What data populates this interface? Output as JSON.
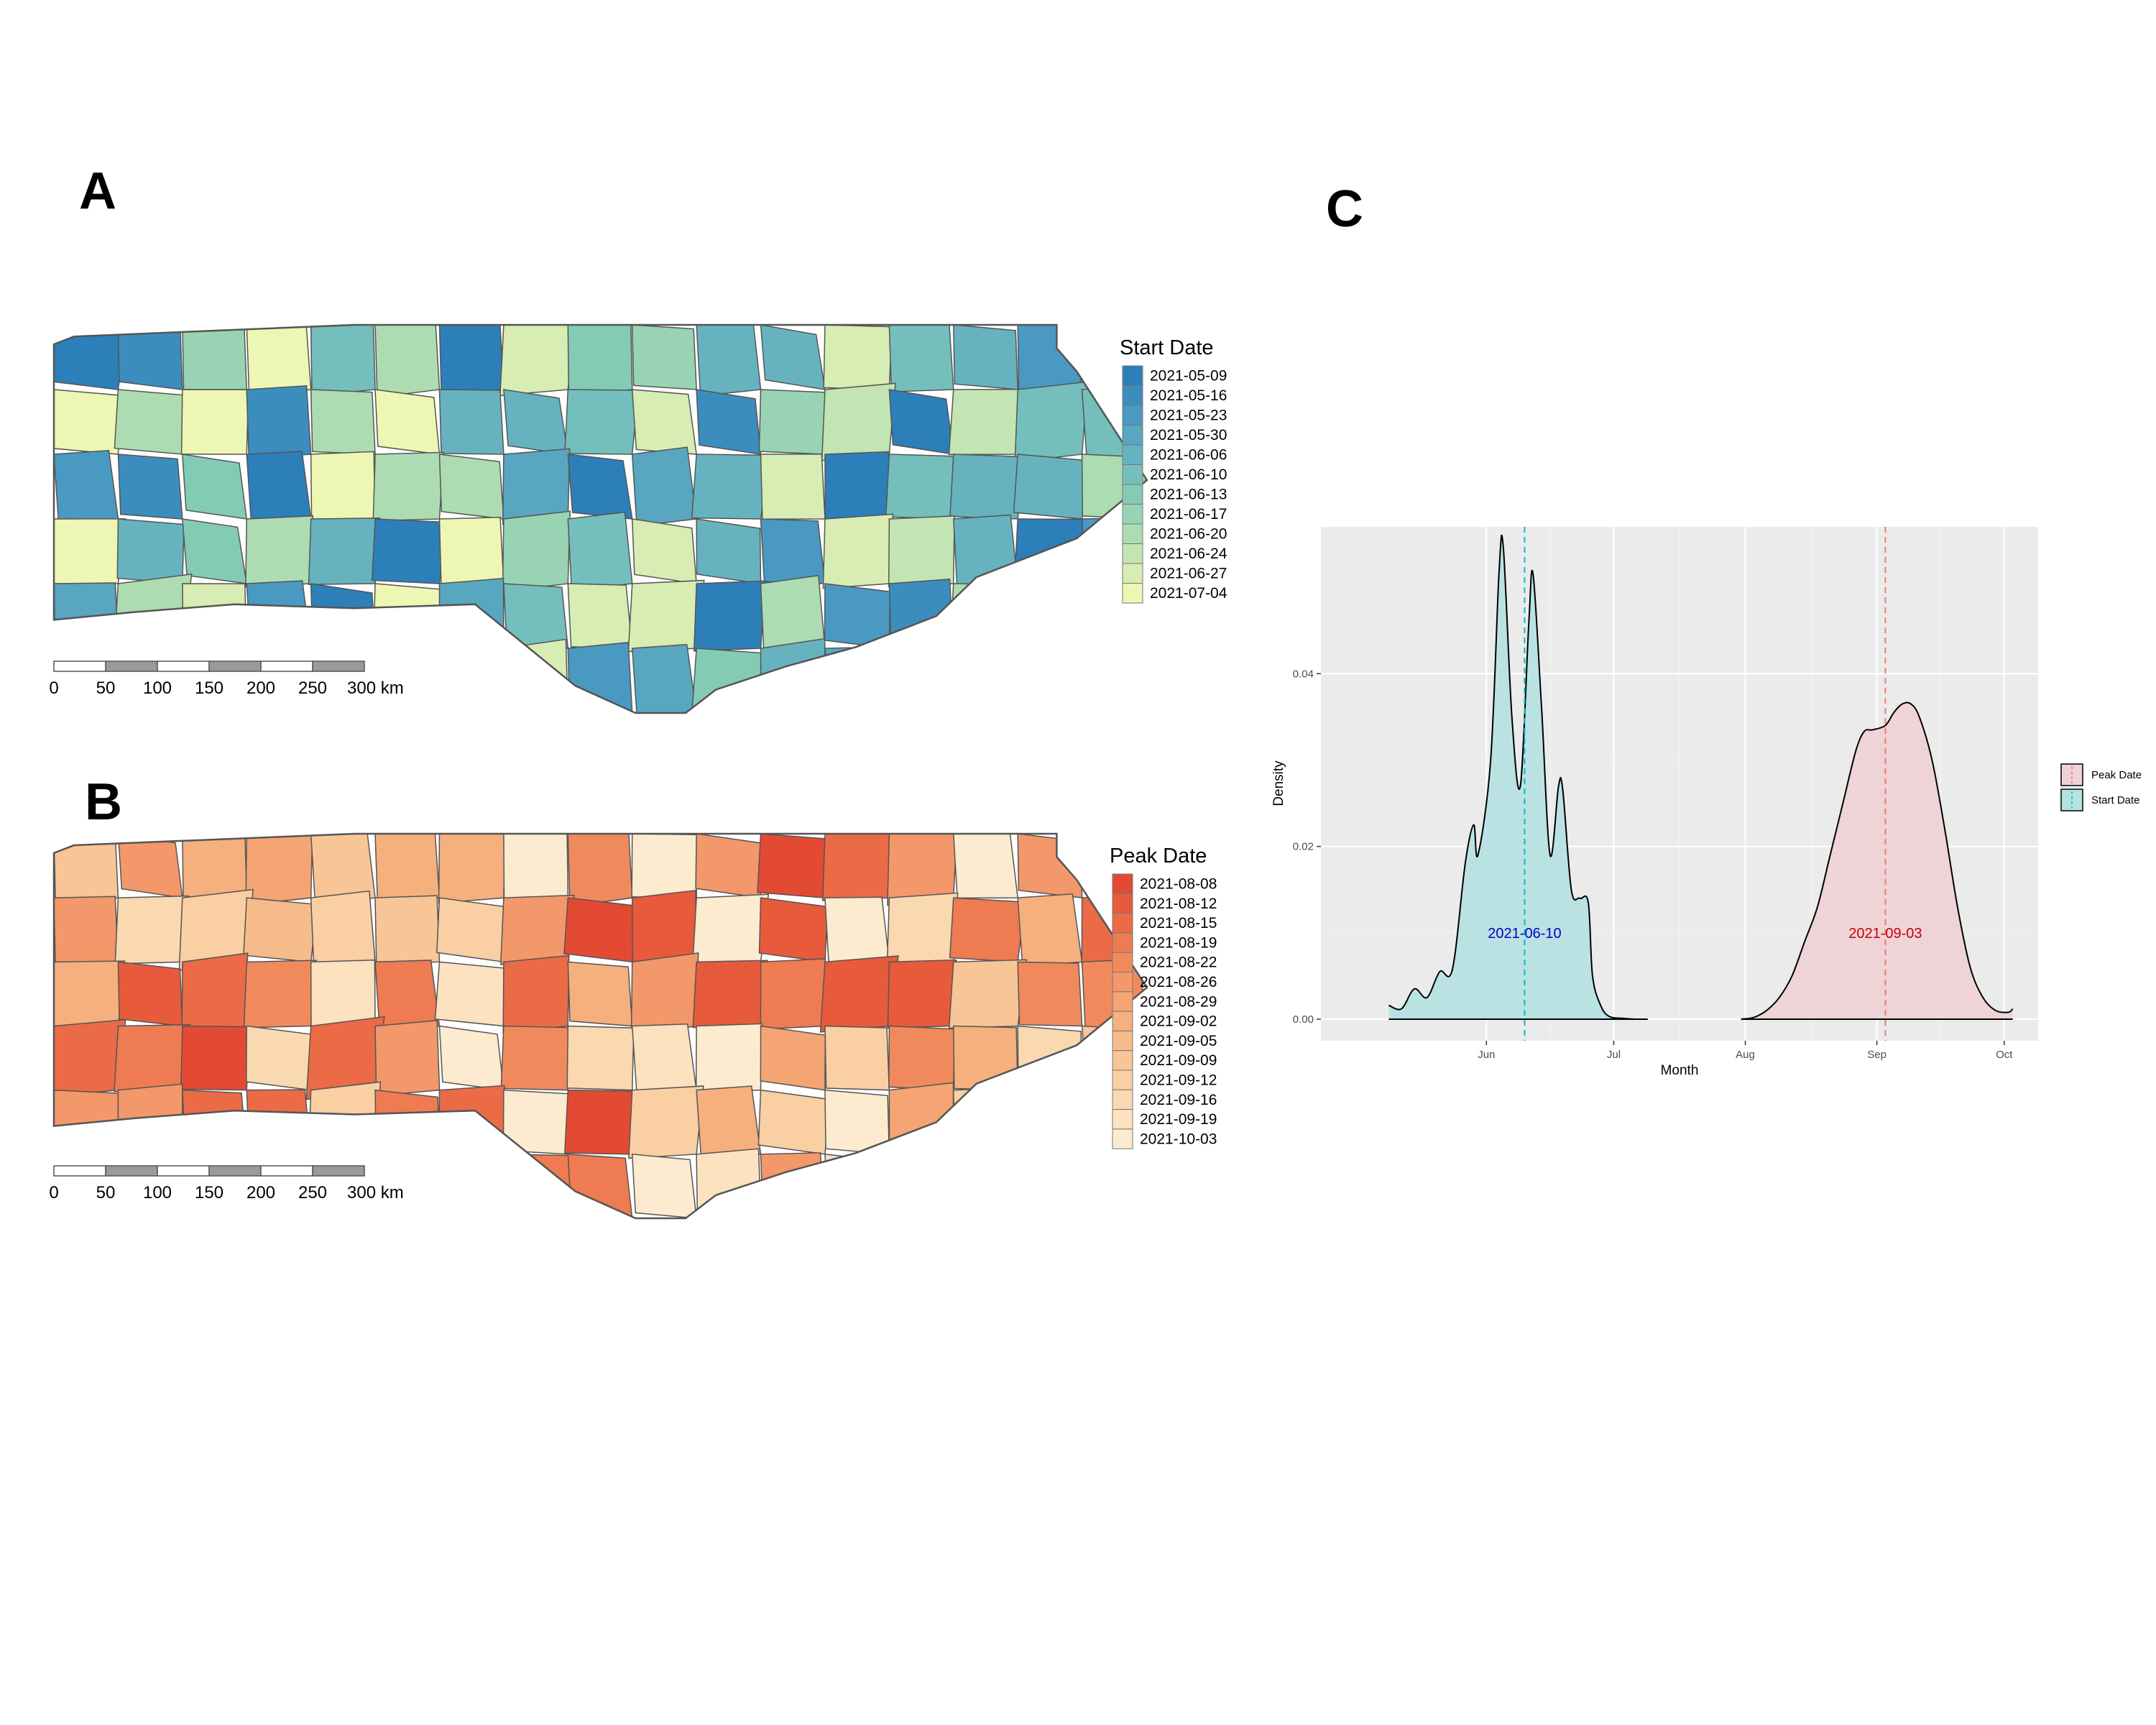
{
  "panels": {
    "a": "A",
    "b": "B",
    "c": "C"
  },
  "map_a": {
    "legend_title": "Start Date",
    "items": [
      {
        "label": "2021-05-09",
        "color": "#2c7fb8"
      },
      {
        "label": "2021-05-16",
        "color": "#3b8dbe"
      },
      {
        "label": "2021-05-23",
        "color": "#4a99c2"
      },
      {
        "label": "2021-05-30",
        "color": "#58a6c0"
      },
      {
        "label": "2021-06-06",
        "color": "#66b3bf"
      },
      {
        "label": "2021-06-10",
        "color": "#74bfbb"
      },
      {
        "label": "2021-06-13",
        "color": "#84cbb6"
      },
      {
        "label": "2021-06-17",
        "color": "#98d4b3"
      },
      {
        "label": "2021-06-20",
        "color": "#addcb2"
      },
      {
        "label": "2021-06-24",
        "color": "#c2e5b3"
      },
      {
        "label": "2021-06-27",
        "color": "#d7edb3"
      },
      {
        "label": "2021-07-04",
        "color": "#edf7b3"
      }
    ]
  },
  "map_b": {
    "legend_title": "Peak Date",
    "items": [
      {
        "label": "2021-08-08",
        "color": "#e34a33"
      },
      {
        "label": "2021-08-12",
        "color": "#e75b3c"
      },
      {
        "label": "2021-08-15",
        "color": "#eb6b47"
      },
      {
        "label": "2021-08-19",
        "color": "#ee7b52"
      },
      {
        "label": "2021-08-22",
        "color": "#f08a5d"
      },
      {
        "label": "2021-08-26",
        "color": "#f2986a"
      },
      {
        "label": "2021-08-29",
        "color": "#f4a573"
      },
      {
        "label": "2021-09-02",
        "color": "#f5b07e"
      },
      {
        "label": "2021-09-05",
        "color": "#f6bb8a"
      },
      {
        "label": "2021-09-09",
        "color": "#f8c597"
      },
      {
        "label": "2021-09-12",
        "color": "#f9cfa3"
      },
      {
        "label": "2021-09-16",
        "color": "#fad8b0"
      },
      {
        "label": "2021-09-19",
        "color": "#fce2bf"
      },
      {
        "label": "2021-10-03",
        "color": "#fdebcf"
      }
    ]
  },
  "scalebar": {
    "labels": [
      "0",
      "50",
      "100",
      "150",
      "200",
      "250",
      "300 km"
    ]
  },
  "chart_data": {
    "type": "area",
    "xlabel": "Month",
    "ylabel": "Density",
    "x_ticks": [
      "Jun",
      "Jul",
      "Aug",
      "Sep",
      "Oct"
    ],
    "x_tick_dates": [
      "2021-06-01",
      "2021-07-01",
      "2021-08-01",
      "2021-09-01",
      "2021-10-01"
    ],
    "xlim": [
      "2021-04-23",
      "2021-10-09"
    ],
    "y_ticks": [
      "0.00",
      "0.02",
      "0.04"
    ],
    "y_tick_values": [
      0,
      0.02,
      0.04
    ],
    "ylim": [
      -0.0025,
      0.057
    ],
    "grid": true,
    "legend_position": "right",
    "series": [
      {
        "name": "Start Date",
        "color": "#00bfc4",
        "fill": "#b7e1e3",
        "median_date": "2021-06-10",
        "x": [
          "2021-05-09",
          "2021-05-12",
          "2021-05-15",
          "2021-05-18",
          "2021-05-21",
          "2021-05-24",
          "2021-05-27",
          "2021-05-29",
          "2021-05-30",
          "2021-06-02",
          "2021-06-04",
          "2021-06-05",
          "2021-06-07",
          "2021-06-09",
          "2021-06-11",
          "2021-06-12",
          "2021-06-14",
          "2021-06-16",
          "2021-06-18",
          "2021-06-19",
          "2021-06-21",
          "2021-06-23",
          "2021-06-25",
          "2021-06-26",
          "2021-06-28",
          "2021-06-30",
          "2021-07-03",
          "2021-07-06",
          "2021-07-09"
        ],
        "y": [
          0.0016,
          0.0012,
          0.0035,
          0.0025,
          0.0055,
          0.0058,
          0.018,
          0.0225,
          0.019,
          0.03,
          0.052,
          0.0545,
          0.035,
          0.027,
          0.046,
          0.0515,
          0.036,
          0.019,
          0.027,
          0.0265,
          0.015,
          0.014,
          0.0135,
          0.005,
          0.0015,
          0.0003,
          0.0001,
          0,
          0
        ]
      },
      {
        "name": "Peak Date",
        "color": "#f8766d",
        "fill": "#eed2d6",
        "median_date": "2021-09-03",
        "x": [
          "2021-07-31",
          "2021-08-03",
          "2021-08-06",
          "2021-08-09",
          "2021-08-12",
          "2021-08-15",
          "2021-08-18",
          "2021-08-21",
          "2021-08-24",
          "2021-08-27",
          "2021-08-29",
          "2021-08-31",
          "2021-09-03",
          "2021-09-05",
          "2021-09-07",
          "2021-09-09",
          "2021-09-11",
          "2021-09-14",
          "2021-09-17",
          "2021-09-20",
          "2021-09-23",
          "2021-09-26",
          "2021-09-29",
          "2021-10-02",
          "2021-10-03"
        ],
        "y": [
          0,
          0.0002,
          0.001,
          0.0025,
          0.005,
          0.009,
          0.013,
          0.019,
          0.025,
          0.031,
          0.0333,
          0.0335,
          0.034,
          0.0355,
          0.0365,
          0.0365,
          0.035,
          0.03,
          0.022,
          0.013,
          0.006,
          0.0025,
          0.001,
          0.0008,
          0.0012
        ]
      }
    ]
  }
}
